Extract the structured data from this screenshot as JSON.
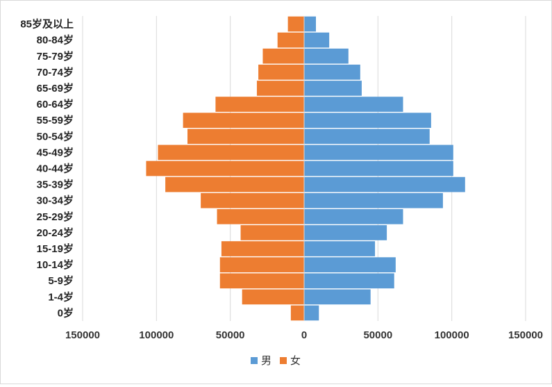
{
  "chart_data": {
    "type": "bar",
    "orientation": "horizontal",
    "layout": "population-pyramid",
    "categories": [
      "85岁及以上",
      "80-84岁",
      "75-79岁",
      "70-74岁",
      "65-69岁",
      "60-64岁",
      "55-59岁",
      "50-54岁",
      "45-49岁",
      "40-44岁",
      "35-39岁",
      "30-34岁",
      "25-29岁",
      "20-24岁",
      "15-19岁",
      "10-14岁",
      "5-9岁",
      "1-4岁",
      "0岁"
    ],
    "series": [
      {
        "name": "男",
        "color": "#5b9bd5",
        "direction": "right",
        "values": [
          8000,
          17000,
          30000,
          38000,
          39000,
          67000,
          86000,
          85000,
          101000,
          101000,
          109000,
          94000,
          67000,
          56000,
          48000,
          62000,
          61000,
          45000,
          10000
        ]
      },
      {
        "name": "女",
        "color": "#ed7d31",
        "direction": "left",
        "values": [
          11000,
          18000,
          28000,
          31000,
          32000,
          60000,
          82000,
          79000,
          99000,
          107000,
          94000,
          70000,
          59000,
          43000,
          56000,
          57000,
          57000,
          42000,
          9000
        ]
      }
    ],
    "xlim": [
      -150000,
      150000
    ],
    "xticks": [
      -150000,
      -100000,
      -50000,
      0,
      50000,
      100000,
      150000
    ],
    "xtick_labels": [
      "150000",
      "100000",
      "50000",
      "0",
      "50000",
      "100000",
      "150000"
    ],
    "grid": "vertical",
    "legend_position": "bottom",
    "title": "",
    "xlabel": "",
    "ylabel": ""
  }
}
